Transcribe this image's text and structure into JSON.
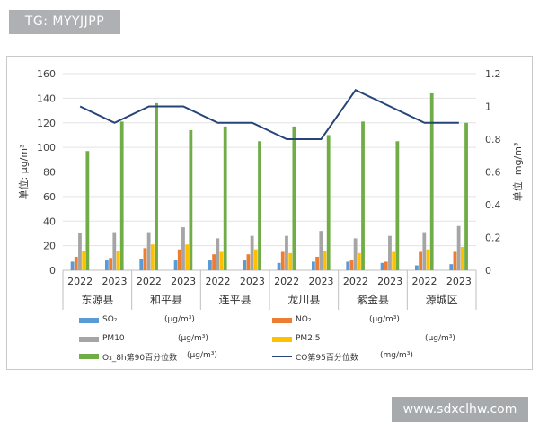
{
  "tag": "TG: MYYJJPP",
  "watermark": "www.sdxclhw.com",
  "chart_data": {
    "type": "bar",
    "groups": [
      "东源县",
      "和平县",
      "连平县",
      "龙川县",
      "紫金县",
      "源城区"
    ],
    "years": [
      "2022",
      "2023"
    ],
    "ylabel_left": "单位: μg/m³",
    "ylabel_right": "单位: mg/m³",
    "ylim_left": [
      0,
      160
    ],
    "ylim_right": [
      0,
      1.2
    ],
    "yticks_left": [
      "0",
      "20",
      "40",
      "60",
      "80",
      "100",
      "120",
      "140",
      "160"
    ],
    "yticks_right": [
      "0",
      "0.2",
      "0.4",
      "0.6",
      "0.8",
      "1",
      "1.2"
    ],
    "series": [
      {
        "name": "SO₂",
        "unit": "(μg/m³)",
        "color": "#5b9bd5",
        "values": [
          7,
          8,
          9,
          8,
          8,
          8,
          6,
          7,
          7,
          6,
          4,
          5
        ]
      },
      {
        "name": "NO₂",
        "unit": "(μg/m³)",
        "color": "#ed7d31",
        "values": [
          11,
          10,
          18,
          17,
          13,
          13,
          15,
          11,
          8,
          7,
          15,
          15
        ]
      },
      {
        "name": "PM10",
        "unit": "(μg/m³)",
        "color": "#a5a5a5",
        "values": [
          30,
          31,
          31,
          35,
          26,
          28,
          28,
          32,
          26,
          28,
          31,
          36
        ]
      },
      {
        "name": "PM2.5",
        "unit": "(μg/m³)",
        "color": "#ffc000",
        "values": [
          16,
          16,
          21,
          21,
          15,
          17,
          14,
          16,
          14,
          15,
          17,
          19
        ]
      },
      {
        "name": "O₃_8h第90百分位数",
        "unit": "(μg/m³)",
        "color": "#70ad47",
        "values": [
          97,
          121,
          136,
          114,
          117,
          105,
          117,
          110,
          121,
          105,
          144,
          120
        ]
      },
      {
        "name": "CO第95百分位数",
        "unit": "(mg/m³)",
        "color": "#264478",
        "type": "line",
        "axis": "right",
        "values": [
          1.0,
          0.9,
          1.0,
          1.0,
          0.9,
          0.9,
          0.8,
          0.8,
          1.1,
          1.0,
          0.9,
          0.9
        ]
      }
    ],
    "grid": true,
    "legend": "bottom"
  }
}
